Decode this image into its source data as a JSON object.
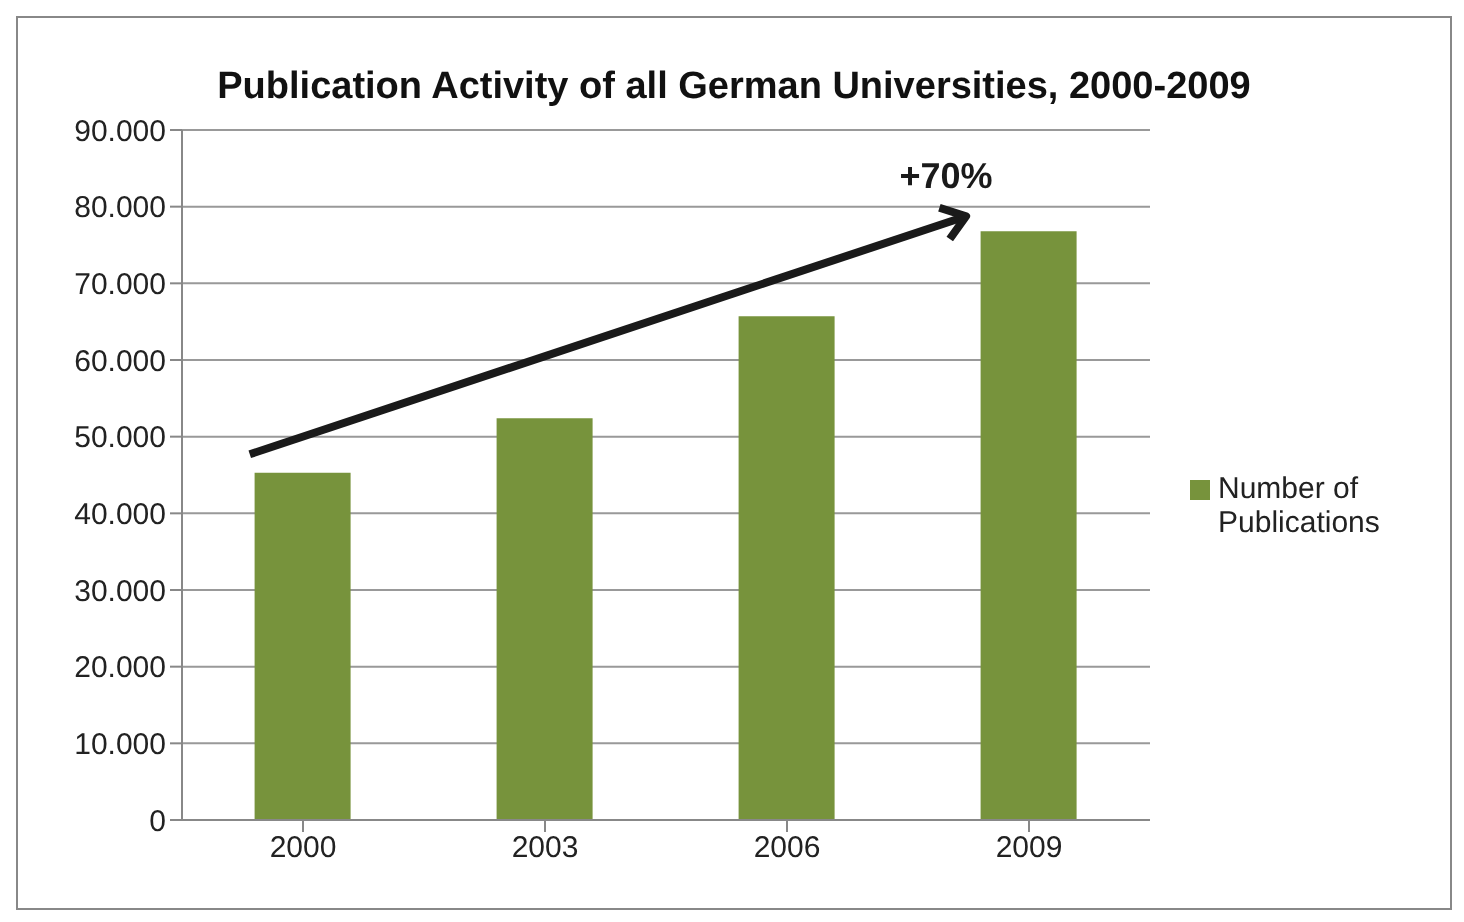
{
  "chart_data": {
    "type": "bar",
    "title": "Publication Activity of all German Universities, 2000-2009",
    "categories": [
      "2000",
      "2003",
      "2006",
      "2009"
    ],
    "series": [
      {
        "name": "Number of Publications",
        "color": "#77933c",
        "values": [
          45300,
          52400,
          65700,
          76800
        ]
      }
    ],
    "ylim": [
      0,
      90000
    ],
    "yticks": [
      0,
      {
        "value": 10000,
        "label": "10.000"
      },
      {
        "value": 20000,
        "label": "20.000"
      },
      {
        "value": 30000,
        "label": "30.000"
      },
      {
        "value": 40000,
        "label": "40.000"
      },
      {
        "value": 50000,
        "label": "50.000"
      },
      {
        "value": 60000,
        "label": "60.000"
      },
      {
        "value": 70000,
        "label": "70.000"
      },
      {
        "value": 80000,
        "label": "80.000"
      },
      {
        "value": 90000,
        "label": "90.000"
      }
    ],
    "annotations": [
      "+70%"
    ],
    "grid": "y",
    "legend": "right"
  }
}
